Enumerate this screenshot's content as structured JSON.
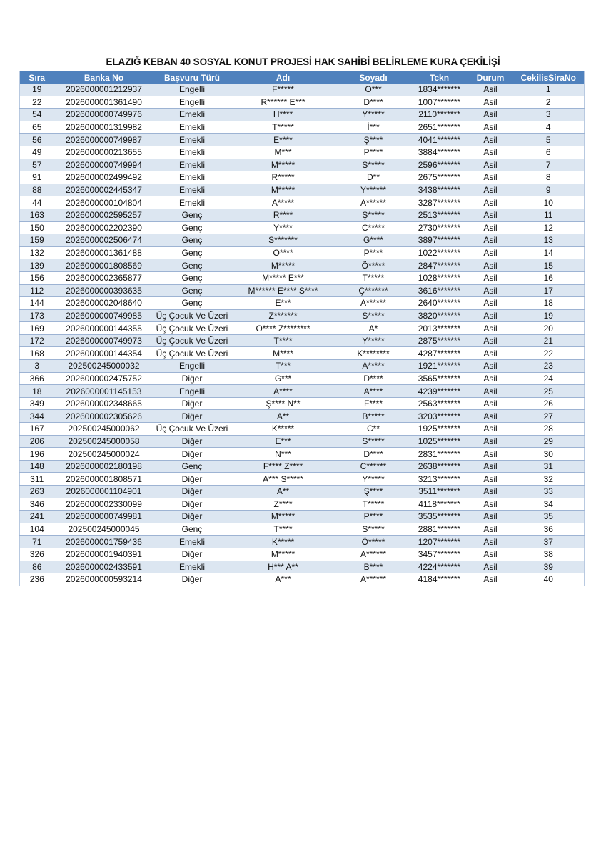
{
  "title": "ELAZIĞ KEBAN 40 SOSYAL KONUT PROJESİ HAK SAHİBİ BELİRLEME KURA ÇEKİLİŞİ",
  "colors": {
    "header_bg": "#4f81bd",
    "header_text": "#ffffff",
    "band": "#dce6f1"
  },
  "columns": [
    "Sıra",
    "Banka No",
    "Başvuru Türü",
    "Adı",
    "Soyadı",
    "Tckn",
    "Durum",
    "CekilisSiraNo"
  ],
  "rows": [
    [
      "19",
      "2026000001212937",
      "Engelli",
      "F*****",
      "O***",
      "1834*******",
      "Asil",
      "1"
    ],
    [
      "22",
      "2026000001361490",
      "Engelli",
      "R****** E***",
      "D****",
      "1007*******",
      "Asil",
      "2"
    ],
    [
      "54",
      "2026000000749976",
      "Emekli",
      "H****",
      "Y*****",
      "2110*******",
      "Asil",
      "3"
    ],
    [
      "65",
      "2026000001319982",
      "Emekli",
      "T*****",
      "İ***",
      "2651*******",
      "Asil",
      "4"
    ],
    [
      "56",
      "2026000000749987",
      "Emekli",
      "E****",
      "Ş****",
      "4041*******",
      "Asil",
      "5"
    ],
    [
      "49",
      "2026000000213655",
      "Emekli",
      "M***",
      "P****",
      "3884*******",
      "Asil",
      "6"
    ],
    [
      "57",
      "2026000000749994",
      "Emekli",
      "M*****",
      "S*****",
      "2596*******",
      "Asil",
      "7"
    ],
    [
      "91",
      "2026000002499492",
      "Emekli",
      "R*****",
      "D**",
      "2675*******",
      "Asil",
      "8"
    ],
    [
      "88",
      "2026000002445347",
      "Emekli",
      "M*****",
      "Y******",
      "3438*******",
      "Asil",
      "9"
    ],
    [
      "44",
      "2026000000104804",
      "Emekli",
      "A*****",
      "A******",
      "3287*******",
      "Asil",
      "10"
    ],
    [
      "163",
      "2026000002595257",
      "Genç",
      "R****",
      "Ş*****",
      "2513*******",
      "Asil",
      "11"
    ],
    [
      "150",
      "2026000002202390",
      "Genç",
      "Y****",
      "C*****",
      "2730*******",
      "Asil",
      "12"
    ],
    [
      "159",
      "2026000002506474",
      "Genç",
      "S*******",
      "G****",
      "3897*******",
      "Asil",
      "13"
    ],
    [
      "132",
      "2026000001361488",
      "Genç",
      "O****",
      "P****",
      "1022*******",
      "Asil",
      "14"
    ],
    [
      "139",
      "2026000001808569",
      "Genç",
      "M*****",
      "Ö*****",
      "2847*******",
      "Asil",
      "15"
    ],
    [
      "156",
      "2026000002365877",
      "Genç",
      "M***** E***",
      "T*****",
      "1028*******",
      "Asil",
      "16"
    ],
    [
      "112",
      "2026000000393635",
      "Genç",
      "M****** E**** S****",
      "Ç*******",
      "3616*******",
      "Asil",
      "17"
    ],
    [
      "144",
      "2026000002048640",
      "Genç",
      "E***",
      "A******",
      "2640*******",
      "Asil",
      "18"
    ],
    [
      "173",
      "2026000000749985",
      "Üç Çocuk Ve Üzeri",
      "Z*******",
      "S*****",
      "3820*******",
      "Asil",
      "19"
    ],
    [
      "169",
      "2026000000144355",
      "Üç Çocuk Ve Üzeri",
      "O**** Z********",
      "A*",
      "2013*******",
      "Asil",
      "20"
    ],
    [
      "172",
      "2026000000749973",
      "Üç Çocuk Ve Üzeri",
      "T****",
      "Y*****",
      "2875*******",
      "Asil",
      "21"
    ],
    [
      "168",
      "2026000000144354",
      "Üç Çocuk Ve Üzeri",
      "M****",
      "K********",
      "4287*******",
      "Asil",
      "22"
    ],
    [
      "3",
      "202500245000032",
      "Engelli",
      "T***",
      "A*****",
      "1921*******",
      "Asil",
      "23"
    ],
    [
      "366",
      "2026000002475752",
      "Diğer",
      "G***",
      "D****",
      "3565*******",
      "Asil",
      "24"
    ],
    [
      "18",
      "2026000001145153",
      "Engelli",
      "A****",
      "A****",
      "4239*******",
      "Asil",
      "25"
    ],
    [
      "349",
      "2026000002348665",
      "Diğer",
      "Ş**** N**",
      "F****",
      "2563*******",
      "Asil",
      "26"
    ],
    [
      "344",
      "2026000002305626",
      "Diğer",
      "A**",
      "B*****",
      "3203*******",
      "Asil",
      "27"
    ],
    [
      "167",
      "202500245000062",
      "Üç Çocuk Ve Üzeri",
      "K*****",
      "C**",
      "1925*******",
      "Asil",
      "28"
    ],
    [
      "206",
      "202500245000058",
      "Diğer",
      "E***",
      "S*****",
      "1025*******",
      "Asil",
      "29"
    ],
    [
      "196",
      "202500245000024",
      "Diğer",
      "N***",
      "D****",
      "2831*******",
      "Asil",
      "30"
    ],
    [
      "148",
      "2026000002180198",
      "Genç",
      "F**** Z****",
      "C******",
      "2638*******",
      "Asil",
      "31"
    ],
    [
      "311",
      "2026000001808571",
      "Diğer",
      "A*** S*****",
      "Y*****",
      "3213*******",
      "Asil",
      "32"
    ],
    [
      "263",
      "2026000001104901",
      "Diğer",
      "A**",
      "Ş****",
      "3511*******",
      "Asil",
      "33"
    ],
    [
      "346",
      "2026000002330099",
      "Diğer",
      "Z****",
      "T*****",
      "4118*******",
      "Asil",
      "34"
    ],
    [
      "241",
      "2026000000749981",
      "Diğer",
      "M*****",
      "P****",
      "3535*******",
      "Asil",
      "35"
    ],
    [
      "104",
      "202500245000045",
      "Genç",
      "T****",
      "S*****",
      "2881*******",
      "Asil",
      "36"
    ],
    [
      "71",
      "2026000001759436",
      "Emekli",
      "K*****",
      "Ö*****",
      "1207*******",
      "Asil",
      "37"
    ],
    [
      "326",
      "2026000001940391",
      "Diğer",
      "M*****",
      "A******",
      "3457*******",
      "Asil",
      "38"
    ],
    [
      "86",
      "2026000002433591",
      "Emekli",
      "H*** A**",
      "B****",
      "4224*******",
      "Asil",
      "39"
    ],
    [
      "236",
      "2026000000593214",
      "Diğer",
      "A***",
      "A******",
      "4184*******",
      "Asil",
      "40"
    ]
  ]
}
